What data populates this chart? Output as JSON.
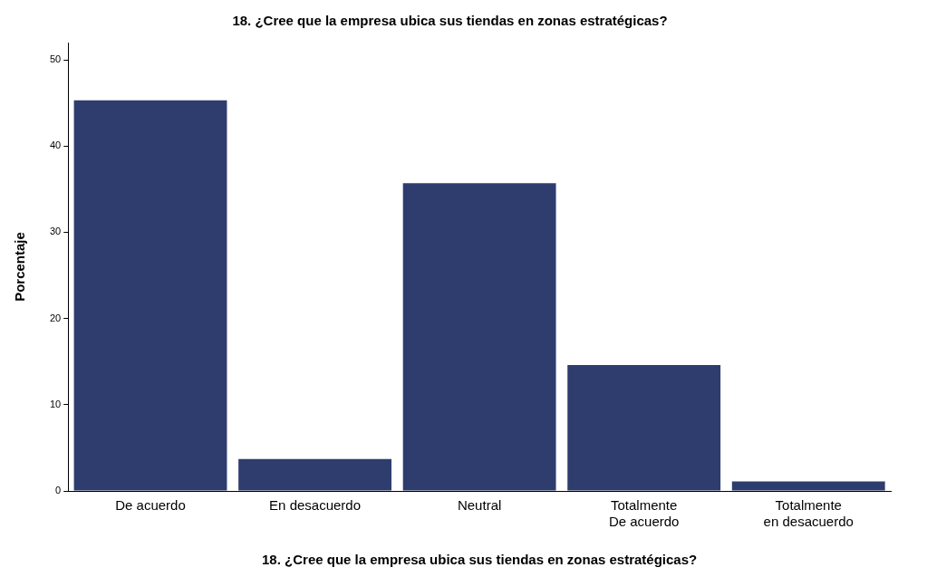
{
  "chart_data": {
    "type": "bar",
    "title": "18. ¿Cree que la empresa ubica sus tiendas en zonas estratégicas?",
    "xlabel": "18. ¿Cree que la empresa ubica sus tiendas en zonas estratégicas?",
    "ylabel": "Porcentaje",
    "categories": [
      "De acuerdo",
      "En desacuerdo",
      "Neutral",
      "Totalmente De acuerdo",
      "Totalmente en desacuerdo"
    ],
    "values": [
      45.3,
      3.7,
      35.7,
      14.6,
      1.1
    ],
    "color": "#2e3d6e",
    "ylim": [
      0,
      52
    ],
    "yticks": [
      0,
      10,
      20,
      30,
      40,
      50
    ],
    "grid": false,
    "legend": false
  }
}
